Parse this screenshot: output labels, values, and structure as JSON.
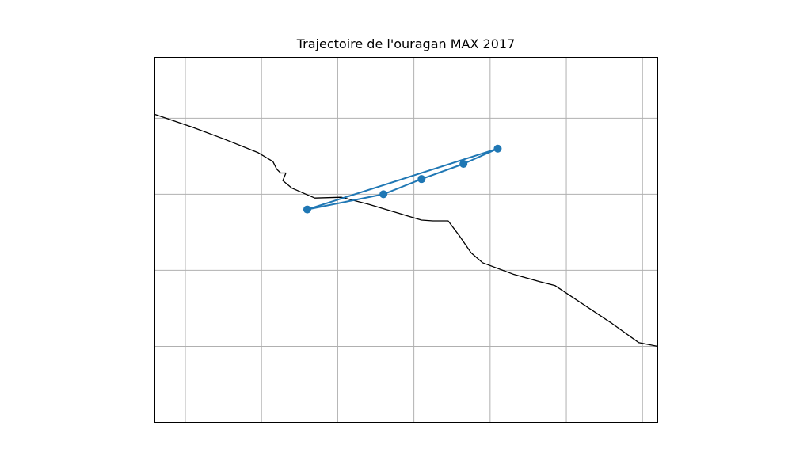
{
  "chart_data": {
    "type": "line",
    "title": "Trajectoire de l'ouragan MAX 2017",
    "xlabel": "",
    "ylabel": "",
    "map_projection": "PlateCarree",
    "xlim": [
      -103.4,
      -96.8
    ],
    "ylim": [
      13.0,
      17.8
    ],
    "grid": true,
    "grid_color": "#b0b0b0",
    "coastline_color": "#000000",
    "series": [
      {
        "color": "#1f77b4",
        "marker": "circle",
        "points": [
          {
            "lon": -98.9,
            "lat": 16.6
          },
          {
            "lon": -99.35,
            "lat": 16.4
          },
          {
            "lon": -99.9,
            "lat": 16.2
          },
          {
            "lon": -100.4,
            "lat": 16.0
          },
          {
            "lon": -101.4,
            "lat": 15.8
          },
          {
            "lon": -98.9,
            "lat": 16.6
          }
        ]
      }
    ],
    "gridlines": {
      "lon": [
        -103,
        -102,
        -101,
        -100,
        -99,
        -98,
        -97
      ],
      "lat": [
        13,
        14,
        15,
        16,
        17
      ]
    },
    "coastline": [
      [
        -103.4,
        17.05
      ],
      [
        -102.9,
        16.88
      ],
      [
        -102.5,
        16.73
      ],
      [
        -102.05,
        16.55
      ],
      [
        -101.85,
        16.43
      ],
      [
        -101.8,
        16.33
      ],
      [
        -101.75,
        16.28
      ],
      [
        -101.68,
        16.28
      ],
      [
        -101.72,
        16.18
      ],
      [
        -101.6,
        16.08
      ],
      [
        -101.3,
        15.95
      ],
      [
        -100.95,
        15.96
      ],
      [
        -100.6,
        15.87
      ],
      [
        -100.2,
        15.75
      ],
      [
        -99.9,
        15.66
      ],
      [
        -99.75,
        15.65
      ],
      [
        -99.55,
        15.65
      ],
      [
        -99.4,
        15.45
      ],
      [
        -99.25,
        15.23
      ],
      [
        -99.1,
        15.1
      ],
      [
        -98.7,
        14.95
      ],
      [
        -98.35,
        14.85
      ],
      [
        -98.15,
        14.8
      ],
      [
        -97.85,
        14.6
      ],
      [
        -97.4,
        14.3
      ],
      [
        -97.05,
        14.05
      ],
      [
        -96.8,
        14.0
      ]
    ]
  }
}
